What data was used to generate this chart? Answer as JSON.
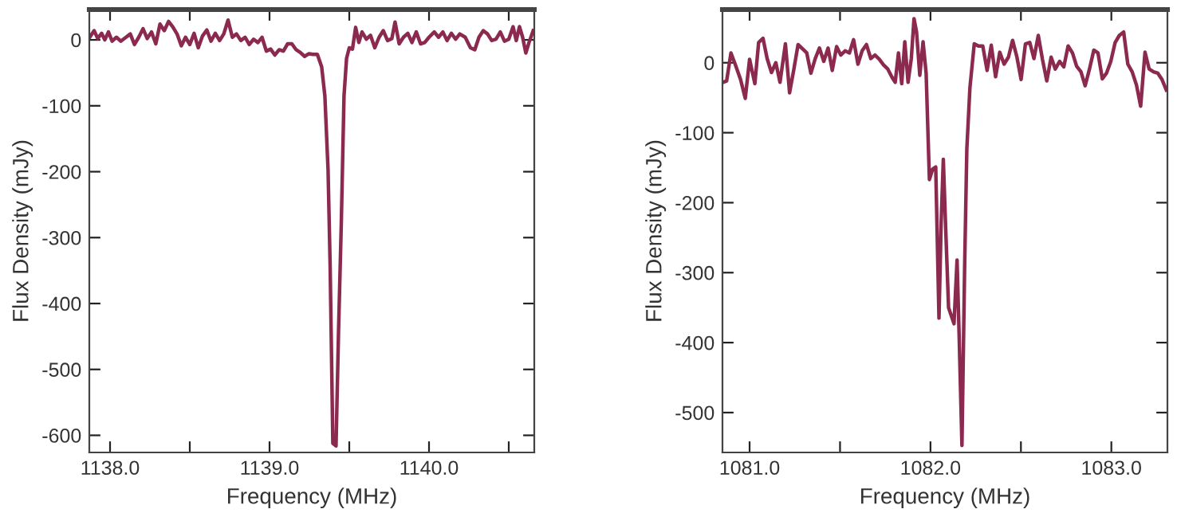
{
  "chart_data": [
    {
      "type": "line",
      "xlabel": "Frequency (MHz)",
      "ylabel": "Flux Density (mJy)",
      "grid": false,
      "legend": false,
      "marker": "none",
      "line_style": "solid",
      "xlim": [
        1137.87,
        1140.66
      ],
      "ylim": [
        -626,
        46
      ],
      "xticks": [
        {
          "value": 1138,
          "label": "1138.0"
        },
        {
          "value": 1138.5,
          "label": null
        },
        {
          "value": 1139,
          "label": "1139.0"
        },
        {
          "value": 1139.5,
          "label": null
        },
        {
          "value": 1140,
          "label": "1140.0"
        },
        {
          "value": 1140.5,
          "label": null
        }
      ],
      "yticks": [
        -600,
        -500,
        -400,
        -300,
        -200,
        -100,
        0
      ],
      "series": [
        {
          "color": "#8b2a4e",
          "x": [
            1137.873,
            1137.9,
            1137.923,
            1137.947,
            1137.967,
            1137.99,
            1138.013,
            1138.04,
            1138.067,
            1138.1,
            1138.127,
            1138.153,
            1138.18,
            1138.207,
            1138.233,
            1138.26,
            1138.287,
            1138.313,
            1138.34,
            1138.367,
            1138.393,
            1138.42,
            1138.447,
            1138.473,
            1138.5,
            1138.527,
            1138.553,
            1138.58,
            1138.607,
            1138.633,
            1138.66,
            1138.687,
            1138.713,
            1138.74,
            1138.767,
            1138.793,
            1138.82,
            1138.847,
            1138.873,
            1138.9,
            1138.927,
            1138.953,
            1138.98,
            1139.007,
            1139.033,
            1139.06,
            1139.087,
            1139.113,
            1139.14,
            1139.167,
            1139.193,
            1139.22,
            1139.247,
            1139.273,
            1139.3,
            1139.327,
            1139.347,
            1139.367,
            1139.38,
            1139.397,
            1139.417,
            1139.433,
            1139.45,
            1139.467,
            1139.483,
            1139.5,
            1139.52,
            1139.54,
            1139.56,
            1139.58,
            1139.607,
            1139.633,
            1139.66,
            1139.687,
            1139.713,
            1139.74,
            1139.767,
            1139.787,
            1139.813,
            1139.84,
            1139.867,
            1139.893,
            1139.92,
            1139.947,
            1139.973,
            1140.0,
            1140.033,
            1140.06,
            1140.087,
            1140.113,
            1140.14,
            1140.167,
            1140.193,
            1140.227,
            1140.26,
            1140.287,
            1140.313,
            1140.34,
            1140.367,
            1140.393,
            1140.42,
            1140.447,
            1140.473,
            1140.5,
            1140.527,
            1140.547,
            1140.567,
            1140.587,
            1140.607,
            1140.627,
            1140.653
          ],
          "values": [
            4,
            14,
            2,
            10,
            0,
            12,
            -2,
            4,
            -2,
            4,
            9,
            -7,
            4,
            17,
            2,
            12,
            -6,
            24,
            14,
            28,
            20,
            9,
            -9,
            4,
            -7,
            10,
            -12,
            6,
            15,
            -2,
            10,
            -1,
            9,
            30,
            4,
            9,
            -1,
            4,
            -7,
            1,
            -4,
            4,
            -17,
            -14,
            -23,
            -15,
            -17,
            -6,
            -6,
            -15,
            -19,
            -25,
            -21,
            -22,
            -22,
            -41,
            -85,
            -197,
            -342,
            -612,
            -616,
            -439,
            -278,
            -85,
            -28,
            -12,
            -14,
            19,
            -4,
            12,
            1,
            7,
            -12,
            4,
            14,
            -1,
            2,
            27,
            -6,
            4,
            10,
            -4,
            12,
            -6,
            -4,
            4,
            12,
            4,
            12,
            -1,
            10,
            1,
            9,
            4,
            -12,
            -15,
            4,
            14,
            9,
            -1,
            1,
            12,
            -2,
            1,
            20,
            -1,
            20,
            4,
            -20,
            -4,
            14
          ]
        }
      ]
    },
    {
      "type": "line",
      "xlabel": "Frequency (MHz)",
      "ylabel": "Flux Density (mJy)",
      "grid": false,
      "legend": false,
      "marker": "none",
      "line_style": "solid",
      "xlim": [
        1080.85,
        1083.31
      ],
      "ylim": [
        -557,
        76
      ],
      "xticks": [
        {
          "value": 1081,
          "label": "1081.0"
        },
        {
          "value": 1081.5,
          "label": null
        },
        {
          "value": 1082,
          "label": "1082.0"
        },
        {
          "value": 1082.5,
          "label": null
        },
        {
          "value": 1083,
          "label": "1083.0"
        }
      ],
      "yticks": [
        -500,
        -400,
        -300,
        -200,
        -100,
        0
      ],
      "series": [
        {
          "color": "#8b2a4e",
          "x": [
            1080.853,
            1080.873,
            1080.897,
            1080.92,
            1080.95,
            1080.976,
            1081.0,
            1081.029,
            1081.05,
            1081.074,
            1081.097,
            1081.121,
            1081.145,
            1081.168,
            1081.198,
            1081.221,
            1081.245,
            1081.268,
            1081.292,
            1081.316,
            1081.339,
            1081.363,
            1081.386,
            1081.41,
            1081.434,
            1081.457,
            1081.481,
            1081.504,
            1081.528,
            1081.552,
            1081.575,
            1081.599,
            1081.622,
            1081.646,
            1081.67,
            1081.693,
            1081.717,
            1081.74,
            1081.764,
            1081.788,
            1081.805,
            1081.823,
            1081.841,
            1081.858,
            1081.876,
            1081.894,
            1081.909,
            1081.923,
            1081.941,
            1081.959,
            1081.976,
            1081.994,
            1082.012,
            1082.029,
            1082.047,
            1082.059,
            1082.071,
            1082.083,
            1082.1,
            1082.13,
            1082.147,
            1082.159,
            1082.174,
            1082.189,
            1082.201,
            1082.218,
            1082.242,
            1082.265,
            1082.289,
            1082.313,
            1082.336,
            1082.36,
            1082.383,
            1082.407,
            1082.431,
            1082.454,
            1082.478,
            1082.501,
            1082.525,
            1082.549,
            1082.572,
            1082.596,
            1082.619,
            1082.643,
            1082.667,
            1082.69,
            1082.714,
            1082.737,
            1082.761,
            1082.785,
            1082.808,
            1082.832,
            1082.855,
            1082.879,
            1082.903,
            1082.926,
            1082.95,
            1082.973,
            1082.997,
            1083.021,
            1083.044,
            1083.068,
            1083.091,
            1083.115,
            1083.139,
            1083.162,
            1083.186,
            1083.209,
            1083.233,
            1083.257,
            1083.28,
            1083.304
          ],
          "values": [
            -28,
            -26,
            14,
            -2,
            -24,
            -51,
            5,
            -30,
            29,
            35,
            6,
            -14,
            0,
            -28,
            27,
            -43,
            -9,
            26,
            20,
            14,
            -15,
            6,
            21,
            2,
            21,
            -11,
            23,
            11,
            17,
            14,
            33,
            -2,
            17,
            26,
            6,
            11,
            5,
            -3,
            -9,
            -21,
            -28,
            14,
            -30,
            30,
            -28,
            6,
            63,
            44,
            -18,
            30,
            -15,
            -167,
            -152,
            -149,
            -365,
            -229,
            -138,
            -229,
            -350,
            -373,
            -282,
            -395,
            -547,
            -289,
            -123,
            -36,
            27,
            24,
            24,
            -11,
            25,
            -20,
            15,
            -2,
            8,
            32,
            8,
            -24,
            27,
            29,
            6,
            39,
            5,
            -26,
            8,
            -9,
            2,
            -6,
            24,
            14,
            -5,
            -13,
            -33,
            -9,
            18,
            14,
            -23,
            -15,
            2,
            29,
            39,
            44,
            -2,
            -13,
            -32,
            -62,
            15,
            -9,
            -13,
            -15,
            -24,
            -39
          ]
        }
      ]
    }
  ]
}
